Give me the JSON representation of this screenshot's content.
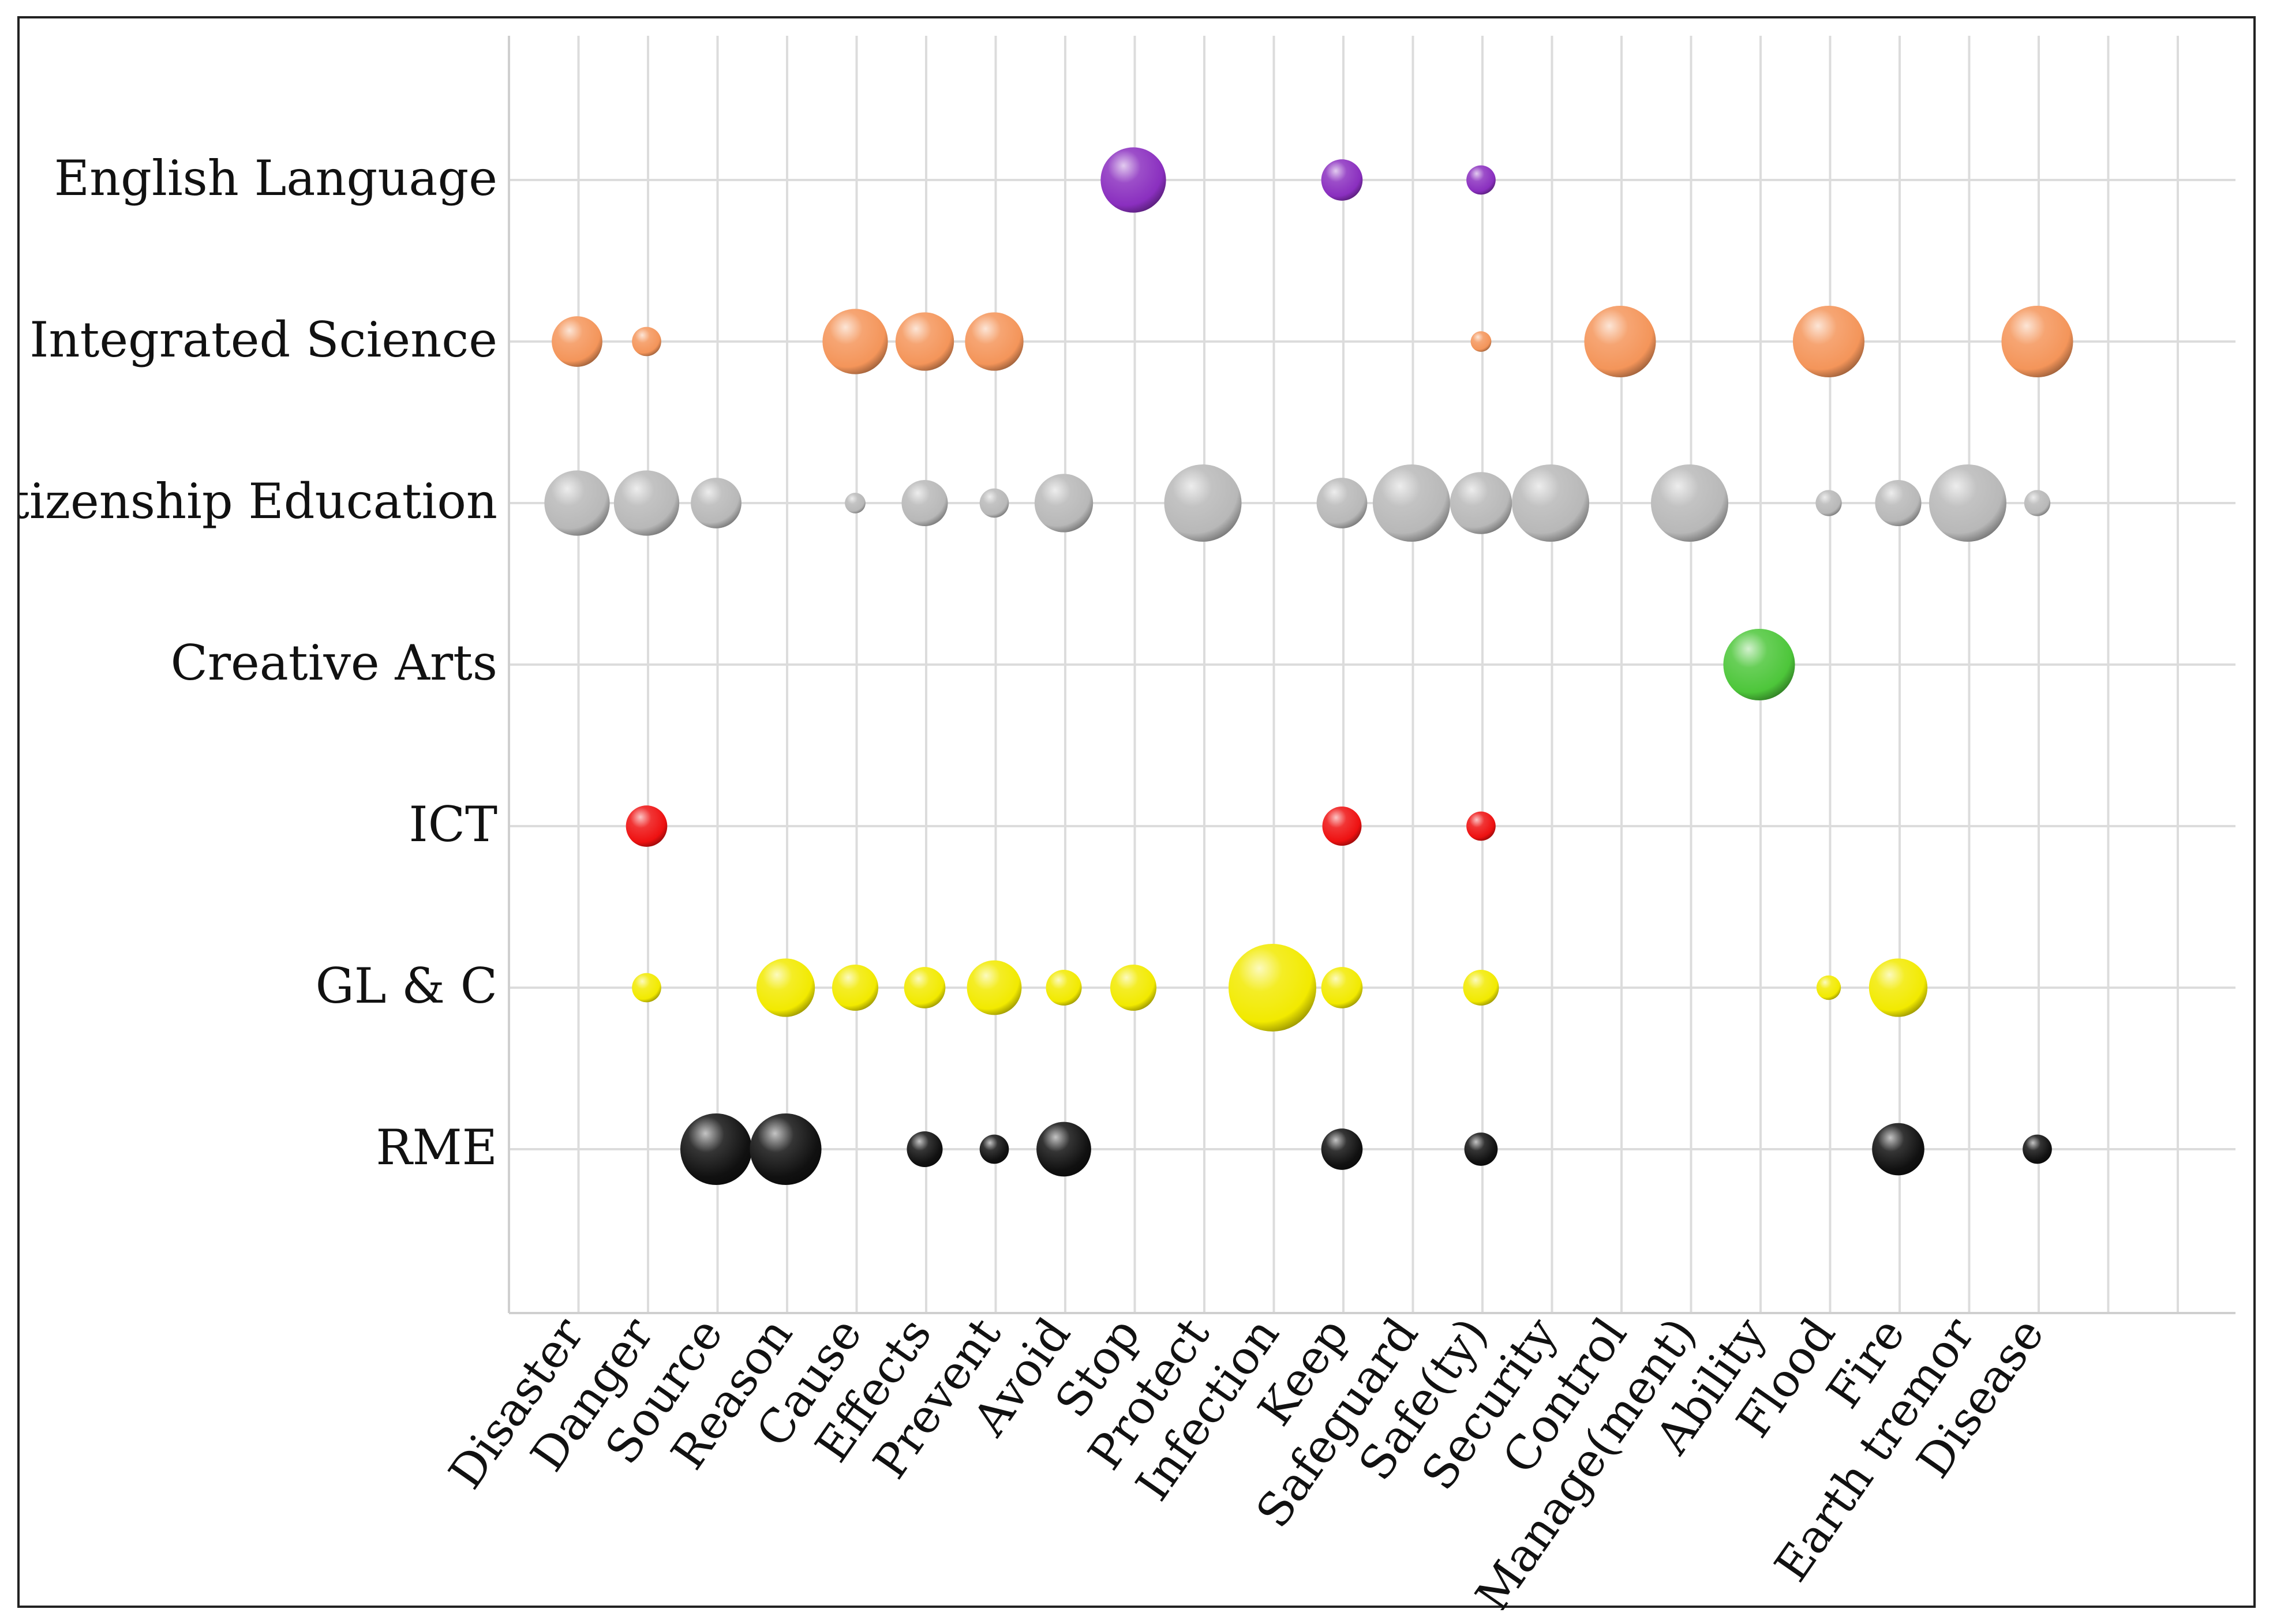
{
  "chart_data": {
    "type": "bubble",
    "title": "",
    "xlabel": "",
    "ylabel": "",
    "grid": true,
    "categories": [
      "Disaster",
      "Danger",
      "Source",
      "Reason",
      "Cause",
      "Effects",
      "Prevent",
      "Avoid",
      "Stop",
      "Protect",
      "Infection",
      "Keep",
      "Safeguard",
      "Safe(ty)",
      "Security",
      "Control",
      "Manage(ment)",
      "Ability",
      "Flood",
      "Fire",
      "Earth tremor",
      "Disease"
    ],
    "series": [
      {
        "name": "English Language",
        "color": "#8a2fbf",
        "values": [
          0,
          0,
          0,
          0,
          0,
          0,
          0,
          0,
          5,
          0,
          0,
          2,
          0,
          1,
          0,
          0,
          0,
          0,
          0,
          0,
          0,
          0
        ]
      },
      {
        "name": "Integrated Science",
        "color": "#f4955a",
        "values": [
          3,
          1,
          0,
          0,
          5,
          4,
          4,
          0,
          0,
          0,
          0,
          0,
          0,
          0.5,
          0,
          6,
          0,
          0,
          6,
          0,
          0,
          6
        ]
      },
      {
        "name": "Citizenship Education",
        "color": "#b8b8b8",
        "values": [
          5,
          5,
          3,
          0,
          0.5,
          2.5,
          1,
          4,
          0,
          7,
          0,
          3,
          7,
          4.5,
          7,
          0,
          7,
          0,
          0.8,
          2.5,
          7,
          0.8
        ]
      },
      {
        "name": "Creative Arts",
        "color": "#4dc63a",
        "values": [
          0,
          0,
          0,
          0,
          0,
          0,
          0,
          0,
          0,
          0,
          0,
          0,
          0,
          0,
          0,
          0,
          0,
          6,
          0,
          0,
          0,
          0
        ]
      },
      {
        "name": "ICT",
        "color": "#ee1111",
        "values": [
          0,
          2,
          0,
          0,
          0,
          0,
          0,
          0,
          0,
          0,
          0,
          1.8,
          0,
          1,
          0,
          0,
          0,
          0,
          0,
          0,
          0,
          0
        ]
      },
      {
        "name": "GL & C",
        "color": "#f2ea00",
        "values": [
          0,
          1,
          0,
          4,
          2.5,
          2,
          3.5,
          1.5,
          2.5,
          0,
          9,
          2,
          0,
          1.5,
          0,
          0,
          0,
          0,
          0.7,
          4,
          0,
          0
        ]
      },
      {
        "name": "RME",
        "color": "#111111",
        "values": [
          0,
          0,
          6,
          6,
          0,
          1.5,
          1,
          3.5,
          0,
          0,
          0,
          2,
          0,
          1.3,
          0,
          0,
          0,
          0,
          0,
          3.2,
          0,
          1
        ]
      }
    ]
  }
}
